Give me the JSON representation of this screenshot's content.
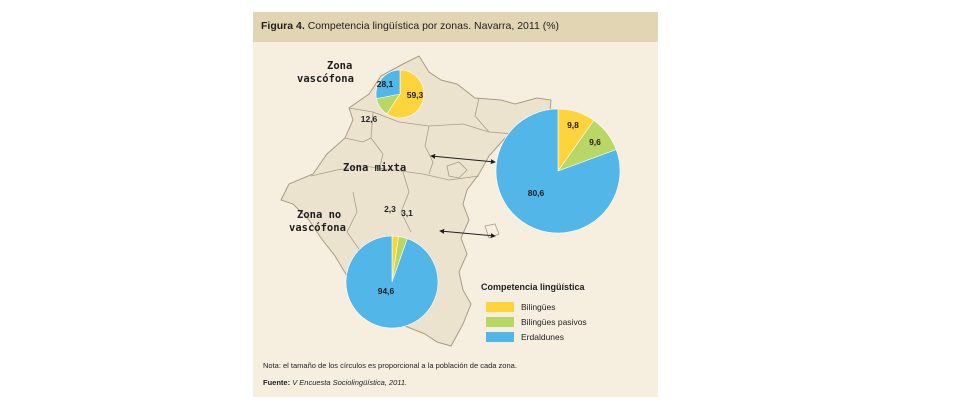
{
  "figure": {
    "title_prefix": "Figura 4.",
    "title_text": "Competencia lingüística por zonas. Navarra, 2011 (%)",
    "note": "Nota: el tamaño de los círculos es proporcional a la población de cada zona.",
    "source_prefix": "Fuente:",
    "source_text": "V Encuesta Sociolingüística, 2011."
  },
  "chart_data": {
    "type": "pie",
    "title": "Competencia lingüística por zonas. Navarra, 2011 (%)",
    "categories": [
      "Bilingües",
      "Bilingües pasivos",
      "Erdaldunes"
    ],
    "legend_title": "Competencia lingüística",
    "colors": [
      "#fdd43c",
      "#b9d764",
      "#52b6e8"
    ],
    "map_color": "#ece3cf",
    "map_stroke": "#a89c86",
    "series": [
      {
        "name": "Zona vascófona",
        "name_lines": [
          "Zona",
          "vascófona"
        ],
        "values": [
          59.3,
          12.6,
          28.1
        ],
        "labels": [
          "59,3",
          "12,6",
          "28,1"
        ]
      },
      {
        "name": "Zona mixta",
        "name_lines": [
          "Zona mixta"
        ],
        "values": [
          9.8,
          9.6,
          80.6
        ],
        "labels": [
          "9,8",
          "9,6",
          "80,6"
        ]
      },
      {
        "name": "Zona no vascófona",
        "name_lines": [
          "Zona no",
          "vascófona"
        ],
        "values": [
          2.3,
          3.1,
          94.6
        ],
        "labels": [
          "2,3",
          "3,1",
          "94,6"
        ]
      }
    ]
  }
}
